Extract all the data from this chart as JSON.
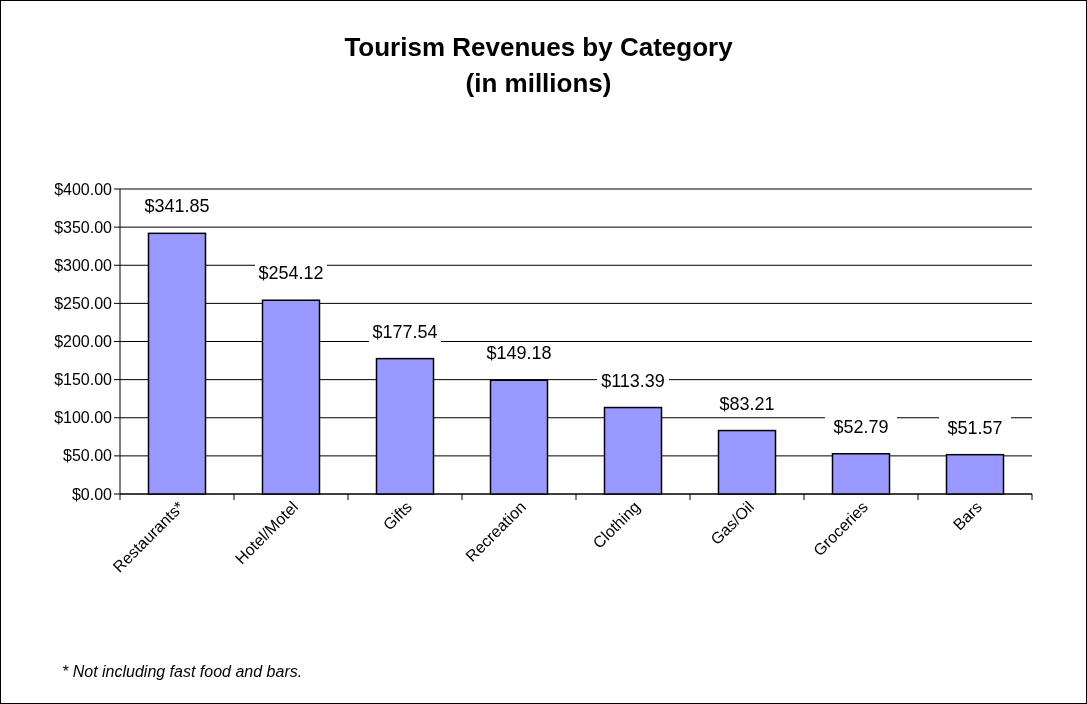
{
  "chart_data": {
    "type": "bar",
    "title": "Tourism Revenues by Category\n(in millions)",
    "categories": [
      "Restaurants*",
      "Hotel/Motel",
      "Gifts",
      "Recreation",
      "Clothing",
      "Gas/Oil",
      "Groceries",
      "Bars"
    ],
    "values": [
      341.85,
      254.12,
      177.54,
      149.18,
      113.39,
      83.21,
      52.79,
      51.57
    ],
    "value_labels": [
      "$341.85",
      "$254.12",
      "$177.54",
      "$149.18",
      "$113.39",
      "$83.21",
      "$52.79",
      "$51.57"
    ],
    "color": "#9999ff",
    "ylim": [
      0,
      400
    ],
    "yticks": [
      {
        "value": 0,
        "label": "$0.00"
      },
      {
        "value": 50,
        "label": "$50.00"
      },
      {
        "value": 100,
        "label": "$100.00"
      },
      {
        "value": 150,
        "label": "$150.00"
      },
      {
        "value": 200,
        "label": "$200.00"
      },
      {
        "value": 250,
        "label": "$250.00"
      },
      {
        "value": 300,
        "label": "$300.00"
      },
      {
        "value": 350,
        "label": "$350.00"
      },
      {
        "value": 400,
        "label": "$400.00"
      }
    ],
    "grid": "y",
    "annotations": [
      "* Not including fast food and bars."
    ]
  }
}
